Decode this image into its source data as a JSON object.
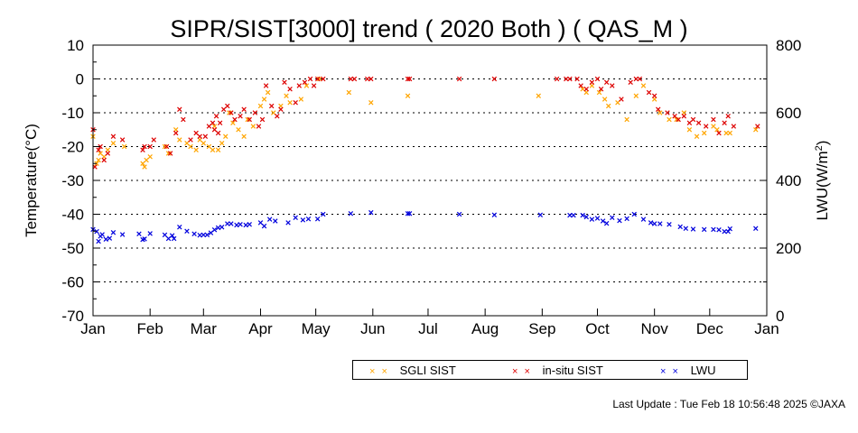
{
  "chart_data": {
    "type": "scatter",
    "title": "SIPR/SIST[3000] trend ( 2020 Both ) ( QAS_M )",
    "ylabel": "Temperature(°C)",
    "y2label_main": "LWU(W/m",
    "y2label_sup": "2",
    "y2label_end": ")",
    "ylim": [
      -70,
      10
    ],
    "y2lim": [
      0,
      800
    ],
    "yticks": [
      "10",
      "0",
      "-10",
      "-20",
      "-30",
      "-40",
      "-50",
      "-60",
      "-70"
    ],
    "y2ticks": [
      "800",
      "600",
      "400",
      "200",
      "0"
    ],
    "xlim": [
      "2020-01-01",
      "2021-01-01"
    ],
    "xticks": [
      "Jan",
      "Feb",
      "Mar",
      "Apr",
      "May",
      "Jun",
      "Jul",
      "Aug",
      "Sep",
      "Oct",
      "Nov",
      "Dec",
      "Jan"
    ],
    "grid": "horizontal dotted",
    "legend_position": "bottom",
    "series": [
      {
        "name": "SGLI SIST",
        "color": "#ffa500",
        "axis": "left",
        "x": [
          "2020-01-01",
          "2020-01-03",
          "2020-01-04",
          "2020-01-05",
          "2020-01-07",
          "2020-01-09",
          "2020-01-12",
          "2020-01-18",
          "2020-01-28",
          "2020-01-29",
          "2020-01-30",
          "2020-02-01",
          "2020-02-09",
          "2020-02-11",
          "2020-02-15",
          "2020-02-17",
          "2020-02-21",
          "2020-02-23",
          "2020-02-26",
          "2020-02-28",
          "2020-03-01",
          "2020-03-04",
          "2020-03-06",
          "2020-03-07",
          "2020-03-09",
          "2020-03-11",
          "2020-03-13",
          "2020-03-15",
          "2020-03-17",
          "2020-03-20",
          "2020-03-23",
          "2020-03-25",
          "2020-03-28",
          "2020-04-01",
          "2020-04-03",
          "2020-04-05",
          "2020-04-08",
          "2020-04-12",
          "2020-04-15",
          "2020-04-17",
          "2020-04-23",
          "2020-04-26",
          "2020-05-03",
          "2020-05-19",
          "2020-05-31",
          "2020-06-20",
          "2020-08-30",
          "2020-09-23",
          "2020-09-25",
          "2020-09-28",
          "2020-10-02",
          "2020-10-05",
          "2020-10-07",
          "2020-10-12",
          "2020-10-17",
          "2020-10-22",
          "2020-10-26",
          "2020-11-01",
          "2020-11-04",
          "2020-11-09",
          "2020-11-13",
          "2020-11-17",
          "2020-11-20",
          "2020-11-24",
          "2020-11-28",
          "2020-12-03",
          "2020-12-05",
          "2020-12-10",
          "2020-12-12",
          "2020-12-26"
        ],
        "y": [
          -17,
          -25,
          -24,
          -22,
          -23,
          -21,
          -19,
          -20,
          -25,
          -26,
          -24,
          -23,
          -20,
          -22,
          -15,
          -18,
          -19,
          -20,
          -21,
          -18,
          -19,
          -20,
          -21,
          -14,
          -21,
          -19,
          -17,
          -10,
          -13,
          -15,
          -17,
          -12,
          -14,
          -8,
          -6,
          -4,
          -10,
          -8,
          -5,
          -7,
          -6,
          -2,
          0,
          -4,
          -7,
          -5,
          -5,
          -3,
          -4,
          -2,
          -4,
          -6,
          -8,
          -7,
          -12,
          -5,
          -2,
          -6,
          -10,
          -12,
          -12,
          -10,
          -15,
          -17,
          -16,
          -14,
          -15,
          -16,
          -16,
          -15
        ]
      },
      {
        "name": "in-situ SIST",
        "color": "#dd0000",
        "axis": "left",
        "x": [
          "2020-01-01",
          "2020-01-02",
          "2020-01-04",
          "2020-01-05",
          "2020-01-07",
          "2020-01-09",
          "2020-01-12",
          "2020-01-17",
          "2020-01-28",
          "2020-01-29",
          "2020-02-01",
          "2020-02-03",
          "2020-02-10",
          "2020-02-12",
          "2020-02-15",
          "2020-02-17",
          "2020-02-19",
          "2020-02-23",
          "2020-02-26",
          "2020-02-28",
          "2020-03-02",
          "2020-03-04",
          "2020-03-06",
          "2020-03-07",
          "2020-03-08",
          "2020-03-09",
          "2020-03-10",
          "2020-03-12",
          "2020-03-14",
          "2020-03-16",
          "2020-03-18",
          "2020-03-21",
          "2020-03-23",
          "2020-03-26",
          "2020-03-29",
          "2020-03-31",
          "2020-04-02",
          "2020-04-04",
          "2020-04-07",
          "2020-04-10",
          "2020-04-12",
          "2020-04-14",
          "2020-04-17",
          "2020-04-20",
          "2020-04-22",
          "2020-04-25",
          "2020-04-28",
          "2020-04-30",
          "2020-05-02",
          "2020-05-05",
          "2020-05-20",
          "2020-05-22",
          "2020-05-29",
          "2020-05-31",
          "2020-06-20",
          "2020-06-21",
          "2020-07-18",
          "2020-08-06",
          "2020-09-09",
          "2020-09-14",
          "2020-09-16",
          "2020-09-20",
          "2020-09-22",
          "2020-09-25",
          "2020-09-28",
          "2020-10-01",
          "2020-10-03",
          "2020-10-06",
          "2020-10-09",
          "2020-10-14",
          "2020-10-19",
          "2020-10-22",
          "2020-10-24",
          "2020-10-29",
          "2020-11-01",
          "2020-11-03",
          "2020-11-08",
          "2020-11-12",
          "2020-11-14",
          "2020-11-17",
          "2020-11-20",
          "2020-11-22",
          "2020-11-25",
          "2020-11-29",
          "2020-12-03",
          "2020-12-06",
          "2020-12-09",
          "2020-12-11",
          "2020-12-14",
          "2020-12-27"
        ],
        "y": [
          -15,
          -26,
          -21,
          -20,
          -24,
          -22,
          -17,
          -18,
          -21,
          -20,
          -20,
          -18,
          -20,
          -22,
          -16,
          -9,
          -12,
          -18,
          -16,
          -17,
          -17,
          -14,
          -13,
          -15,
          -11,
          -16,
          -13,
          -9,
          -8,
          -10,
          -12,
          -11,
          -9,
          -12,
          -10,
          -14,
          -12,
          -2,
          -8,
          -11,
          -9,
          -1,
          -3,
          -7,
          -2,
          -1,
          0,
          -2,
          0,
          0,
          0,
          0,
          0,
          0,
          0,
          0,
          0,
          0,
          0,
          0,
          0,
          0,
          -2,
          -3,
          -1,
          0,
          -3,
          -1,
          -2,
          -6,
          -1,
          0,
          0,
          -4,
          -5,
          -9,
          -10,
          -11,
          -12,
          -11,
          -13,
          -12,
          -13,
          -14,
          -12,
          -16,
          -13,
          -11,
          -14,
          -14
        ]
      },
      {
        "name": "LWU",
        "color": "#0000dd",
        "axis": "right",
        "x": [
          "2020-01-01",
          "2020-01-03",
          "2020-01-04",
          "2020-01-05",
          "2020-01-06",
          "2020-01-08",
          "2020-01-10",
          "2020-01-12",
          "2020-01-17",
          "2020-01-26",
          "2020-01-28",
          "2020-01-29",
          "2020-02-01",
          "2020-02-09",
          "2020-02-11",
          "2020-02-13",
          "2020-02-14",
          "2020-02-17",
          "2020-02-21",
          "2020-02-25",
          "2020-02-28",
          "2020-03-01",
          "2020-03-03",
          "2020-03-05",
          "2020-03-07",
          "2020-03-09",
          "2020-03-11",
          "2020-03-14",
          "2020-03-16",
          "2020-03-19",
          "2020-03-21",
          "2020-03-24",
          "2020-03-26",
          "2020-04-01",
          "2020-04-03",
          "2020-04-06",
          "2020-04-09",
          "2020-04-16",
          "2020-04-20",
          "2020-04-24",
          "2020-04-27",
          "2020-05-02",
          "2020-05-05",
          "2020-05-20",
          "2020-05-31",
          "2020-06-20",
          "2020-06-21",
          "2020-07-18",
          "2020-08-06",
          "2020-08-31",
          "2020-09-16",
          "2020-09-18",
          "2020-09-23",
          "2020-09-25",
          "2020-09-28",
          "2020-10-01",
          "2020-10-04",
          "2020-10-06",
          "2020-10-09",
          "2020-10-13",
          "2020-10-17",
          "2020-10-21",
          "2020-10-26",
          "2020-10-30",
          "2020-11-01",
          "2020-11-04",
          "2020-11-09",
          "2020-11-15",
          "2020-11-18",
          "2020-11-22",
          "2020-11-28",
          "2020-12-03",
          "2020-12-06",
          "2020-12-09",
          "2020-12-11",
          "2020-12-12",
          "2020-12-26"
        ],
        "y": [
          255,
          249,
          220,
          235,
          240,
          226,
          229,
          246,
          240,
          242,
          225,
          227,
          243,
          239,
          228,
          237,
          228,
          262,
          250,
          242,
          238,
          239,
          239,
          245,
          254,
          260,
          262,
          272,
          272,
          268,
          270,
          268,
          270,
          275,
          265,
          285,
          280,
          275,
          290,
          283,
          286,
          286,
          300,
          302,
          305,
          302,
          302,
          300,
          298,
          298,
          297,
          297,
          297,
          292,
          285,
          288,
          280,
          273,
          290,
          281,
          287,
          300,
          285,
          275,
          272,
          272,
          270,
          263,
          258,
          256,
          255,
          255,
          254,
          249,
          249,
          257,
          258
        ]
      }
    ]
  },
  "legend": {
    "items": [
      {
        "label": "SGLI SIST",
        "marker": "× ×",
        "color": "#ffa500"
      },
      {
        "label": "in-situ SIST",
        "marker": "× ×",
        "color": "#dd0000"
      },
      {
        "label": "LWU",
        "marker": "× ×",
        "color": "#0000dd"
      }
    ]
  },
  "footer": {
    "last_update": "Last Update : Tue Feb 18 10:56:48 2025  ©JAXA"
  }
}
